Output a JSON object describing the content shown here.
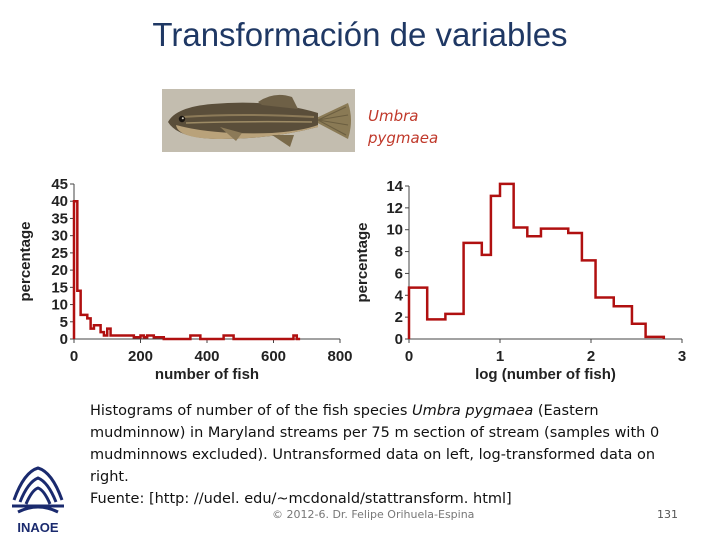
{
  "title": "Transformación de variables",
  "species_label": {
    "line1": "Umbra",
    "line2": "pygmaea"
  },
  "caption": {
    "part1": "Histograms of number of of the fish species ",
    "species_italic": "Umbra pygmaea",
    "part2": " (Eastern mudminnow) in Maryland streams per 75 m section of stream (samples with 0 mudminnows excluded). Untransformed data on left, log-transformed data on right.",
    "source": "Fuente: [http: //udel. edu/~mcdonald/stattransform. html]"
  },
  "footer": {
    "copyright": "© 2012-6. Dr. Felipe Orihuela-Espina",
    "page": "131"
  },
  "logo_text": "INAOE",
  "colors": {
    "title": "#1f3864",
    "series": "#b01010",
    "species": "#c0392b"
  },
  "chart_data": [
    {
      "type": "bar",
      "histtype": "step",
      "title": "",
      "xlabel": "number of fish",
      "ylabel": "percentage",
      "xlim": [
        0,
        800
      ],
      "ylim": [
        0,
        45
      ],
      "xticks": [
        0,
        200,
        400,
        600,
        800
      ],
      "xtick_labels": [
        "0",
        "200",
        "400",
        "600",
        "800"
      ],
      "yticks": [
        0,
        5,
        10,
        15,
        20,
        25,
        30,
        35,
        40,
        45
      ],
      "ytick_labels": [
        "0",
        "5",
        "10",
        "15",
        "20",
        "25",
        "30",
        "35",
        "40",
        "45"
      ],
      "bin_edges": [
        0,
        10,
        20,
        30,
        40,
        50,
        60,
        70,
        80,
        90,
        100,
        110,
        120,
        130,
        140,
        150,
        160,
        170,
        180,
        190,
        200,
        210,
        220,
        230,
        240,
        250,
        260,
        270,
        280,
        290,
        300,
        310,
        320,
        330,
        340,
        350,
        360,
        370,
        380,
        390,
        400,
        410,
        420,
        430,
        440,
        450,
        460,
        470,
        480,
        490,
        500,
        510,
        520,
        530,
        540,
        550,
        560,
        570,
        580,
        590,
        600,
        610,
        620,
        630,
        640,
        650,
        660,
        670,
        680
      ],
      "values": [
        40,
        14,
        7,
        7,
        6,
        3,
        4,
        4,
        2,
        1,
        3,
        1,
        1,
        1,
        1,
        1,
        1,
        1,
        0.5,
        0.5,
        1,
        0.5,
        1,
        1,
        0.5,
        0.5,
        0.5,
        0,
        0,
        0,
        0,
        0,
        0,
        0,
        0,
        1,
        1,
        1,
        0,
        0,
        0,
        0,
        0,
        0,
        0,
        1,
        1,
        1,
        0,
        0,
        0,
        0,
        0,
        0,
        0,
        0,
        0,
        0,
        0,
        0,
        0,
        0,
        0,
        0,
        0,
        0,
        1,
        0
      ]
    },
    {
      "type": "bar",
      "histtype": "step",
      "title": "",
      "xlabel": "log (number of fish)",
      "ylabel": "percentage",
      "xlim": [
        0,
        3
      ],
      "ylim": [
        0,
        14
      ],
      "xticks": [
        0,
        1,
        2,
        3
      ],
      "xtick_labels": [
        "0",
        "1",
        "2",
        "3"
      ],
      "yticks": [
        0,
        2,
        4,
        6,
        8,
        10,
        12,
        14
      ],
      "ytick_labels": [
        "0",
        "2",
        "4",
        "6",
        "8",
        "10",
        "12",
        "14"
      ],
      "bin_edges": [
        0,
        0.2,
        0.4,
        0.6,
        0.8,
        0.9,
        1.0,
        1.15,
        1.3,
        1.45,
        1.6,
        1.75,
        1.9,
        2.05,
        2.25,
        2.45,
        2.6,
        2.8
      ],
      "values": [
        4.7,
        1.8,
        2.3,
        8.8,
        7.7,
        13.1,
        14.2,
        10.2,
        9.4,
        10.1,
        10.1,
        9.7,
        7.2,
        3.8,
        3.0,
        1.4,
        0.2
      ]
    }
  ]
}
